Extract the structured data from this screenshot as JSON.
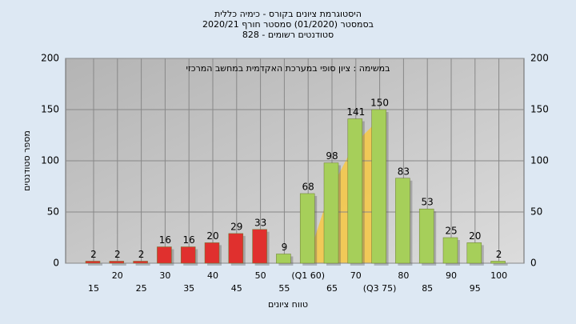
{
  "chart_data": {
    "type": "bar",
    "title": "היסטוגרמת ציונים בקורס - כימיה כללית",
    "subtitle": "בסמסטר  (01/2020)  סמסטר חורף  2020/21",
    "subtitle2": "סטודנטים רשומים - 828",
    "annotation": "במשימה : ציון סופי במערכת האקדמית במחשב המרכזי",
    "ylabel": "מספר סטודנטים",
    "xlabel": "טווח ציונים",
    "categories": [
      "15",
      "20",
      "25",
      "30",
      "35",
      "40",
      "45",
      "50",
      "55",
      "(Q1 60)",
      "65",
      "70",
      "(Q3 75)",
      "80",
      "85",
      "90",
      "95",
      "100"
    ],
    "values": [
      2,
      2,
      2,
      16,
      16,
      20,
      29,
      33,
      9,
      68,
      98,
      141,
      150,
      83,
      53,
      25,
      20,
      2
    ],
    "colors": [
      "#e0302e",
      "#e0302e",
      "#e0302e",
      "#e0302e",
      "#e0302e",
      "#e0302e",
      "#e0302e",
      "#e0302e",
      "#a6cf5a",
      "#a6cf5a",
      "#a6cf5a",
      "#a6cf5a",
      "#a6cf5a",
      "#a6cf5a",
      "#a6cf5a",
      "#a6cf5a",
      "#a6cf5a",
      "#a6cf5a"
    ],
    "ylim": [
      0,
      200
    ],
    "yticks": [
      0,
      50,
      100,
      150,
      200
    ],
    "grid": true
  }
}
